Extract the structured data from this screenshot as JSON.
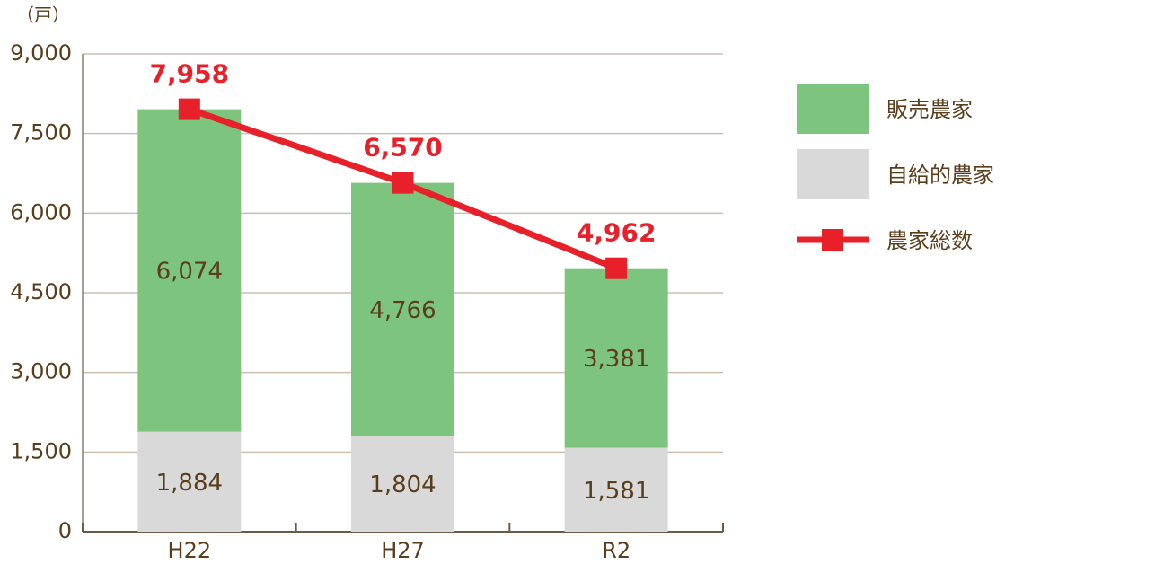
{
  "chart_data": {
    "type": "bar",
    "unit_label": "（戸）",
    "categories": [
      "H22",
      "H27",
      "R2"
    ],
    "series": [
      {
        "name": "販売農家",
        "type": "bar",
        "color": "#7dc47f",
        "values": [
          6074,
          4766,
          3381
        ],
        "value_labels": [
          "6,074",
          "4,766",
          "3,381"
        ]
      },
      {
        "name": "自給的農家",
        "type": "bar",
        "color": "#d9d9d9",
        "values": [
          1884,
          1804,
          1581
        ],
        "value_labels": [
          "1,884",
          "1,804",
          "1,581"
        ]
      },
      {
        "name": "農家総数",
        "type": "line",
        "color": "#e8202a",
        "values": [
          7958,
          6570,
          4962
        ],
        "value_labels": [
          "7,958",
          "6,570",
          "4,962"
        ]
      }
    ],
    "ylim": [
      0,
      9000
    ],
    "yticks": [
      0,
      {
        "value": 1500,
        "label": "1,500"
      },
      {
        "value": 3000,
        "label": "3,000"
      },
      {
        "value": 4500,
        "label": "4,500"
      },
      {
        "value": 6000,
        "label": "6,000"
      },
      {
        "value": 7500,
        "label": "7,500"
      },
      {
        "value": 9000,
        "label": "9,000"
      }
    ],
    "grid": true
  }
}
